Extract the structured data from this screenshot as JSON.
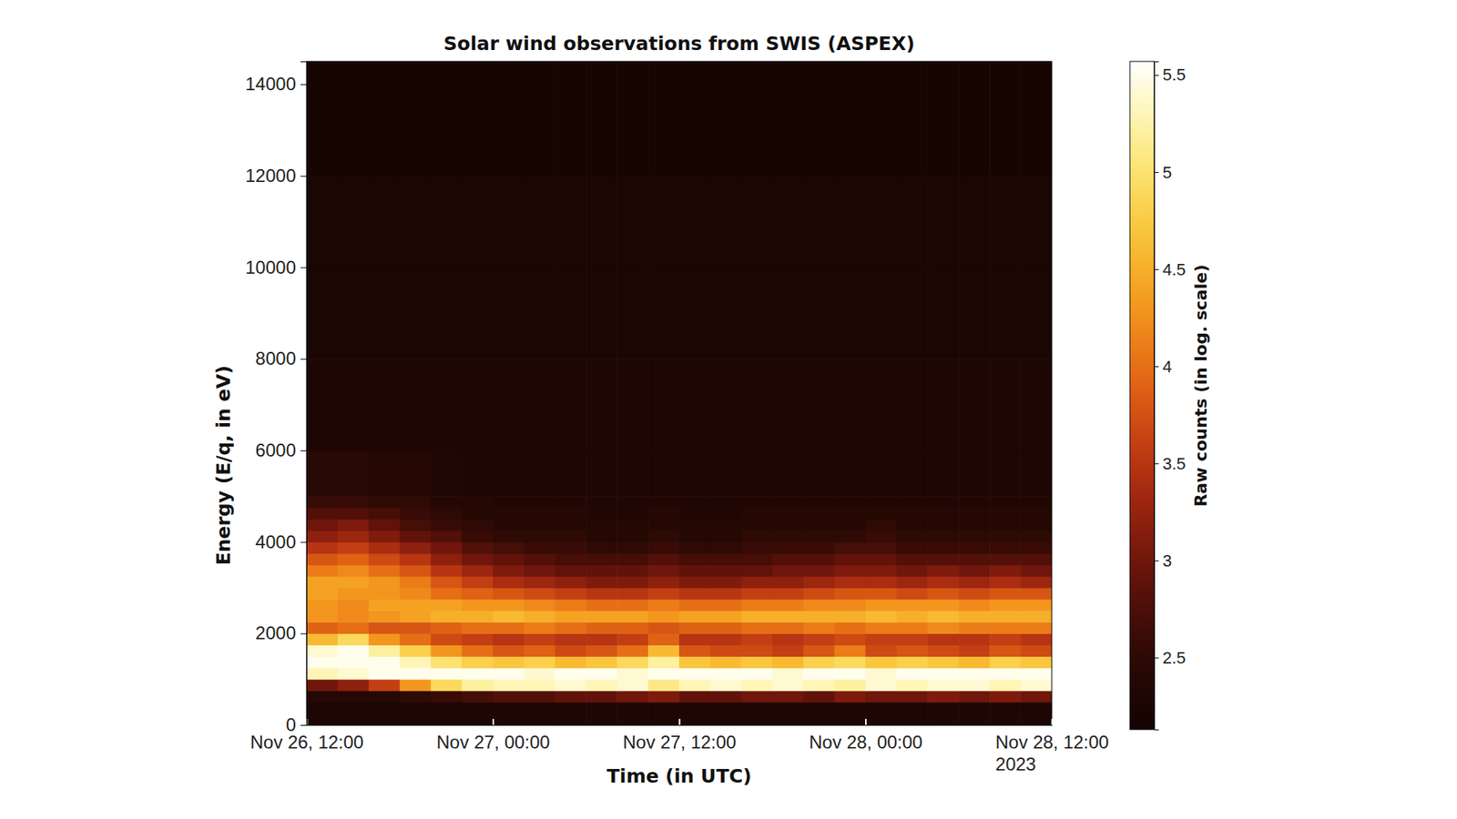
{
  "chart_data": {
    "type": "heatmap",
    "title": "Solar wind observations from SWIS (ASPEX)",
    "x_label": "Time (in UTC)",
    "y_label": "Energy (E/q, in eV)",
    "x": [
      "2023-11-26T12:00",
      "2023-11-26T14:00",
      "2023-11-26T16:00",
      "2023-11-26T18:00",
      "2023-11-26T20:00",
      "2023-11-26T22:00",
      "2023-11-27T00:00",
      "2023-11-27T02:00",
      "2023-11-27T04:00",
      "2023-11-27T06:00",
      "2023-11-27T08:00",
      "2023-11-27T10:00",
      "2023-11-27T12:00",
      "2023-11-27T14:00",
      "2023-11-27T16:00",
      "2023-11-27T18:00",
      "2023-11-27T20:00",
      "2023-11-27T22:00",
      "2023-11-28T00:00",
      "2023-11-28T02:00",
      "2023-11-28T04:00",
      "2023-11-28T06:00",
      "2023-11-28T08:00",
      "2023-11-28T10:00",
      "2023-11-28T12:00"
    ],
    "y": [
      0,
      500,
      750,
      1000,
      1250,
      1500,
      1750,
      2000,
      2250,
      2500,
      2750,
      3000,
      3250,
      3500,
      3750,
      4000,
      4250,
      4500,
      4750,
      5000,
      6000,
      8000,
      10000,
      12000,
      14500
    ],
    "cells": [
      [
        2.3,
        2.3,
        2.3,
        2.3,
        2.3,
        2.3,
        2.3,
        2.3,
        2.3,
        2.3,
        2.3,
        2.3,
        2.3,
        2.3,
        2.3,
        2.3,
        2.3,
        2.3,
        2.3,
        2.3,
        2.3,
        2.3,
        2.3,
        2.3
      ],
      [
        2.4,
        2.4,
        2.4,
        2.5,
        2.6,
        2.7,
        2.8,
        2.8,
        2.9,
        2.9,
        3.0,
        3.1,
        2.9,
        2.9,
        3.0,
        3.0,
        2.9,
        3.1,
        3.0,
        3.0,
        3.1,
        3.0,
        3.1,
        3.0
      ],
      [
        3.0,
        3.2,
        3.6,
        4.3,
        4.9,
        5.2,
        5.3,
        5.3,
        5.4,
        5.3,
        5.4,
        5.1,
        5.3,
        5.4,
        5.3,
        5.4,
        5.3,
        5.2,
        5.4,
        5.3,
        5.4,
        5.4,
        5.3,
        5.4
      ],
      [
        5.3,
        5.4,
        5.5,
        5.5,
        5.5,
        5.5,
        5.5,
        5.4,
        5.5,
        5.5,
        5.4,
        5.5,
        5.5,
        5.5,
        5.5,
        5.4,
        5.5,
        5.5,
        5.4,
        5.5,
        5.5,
        5.5,
        5.5,
        5.5
      ],
      [
        5.5,
        5.5,
        5.5,
        5.3,
        5.0,
        4.8,
        4.7,
        4.8,
        4.6,
        4.7,
        4.9,
        5.2,
        4.7,
        4.6,
        4.7,
        4.6,
        4.8,
        4.9,
        4.7,
        4.8,
        4.7,
        4.6,
        4.8,
        4.7
      ],
      [
        5.4,
        5.5,
        5.2,
        4.8,
        4.3,
        4.0,
        3.8,
        3.9,
        3.7,
        3.8,
        4.0,
        4.6,
        3.8,
        3.7,
        3.7,
        3.6,
        3.8,
        4.1,
        3.7,
        3.8,
        3.7,
        3.6,
        3.8,
        3.7
      ],
      [
        4.6,
        4.9,
        4.3,
        4.0,
        3.7,
        3.6,
        3.5,
        3.6,
        3.5,
        3.5,
        3.6,
        3.9,
        3.5,
        3.5,
        3.6,
        3.5,
        3.6,
        3.7,
        3.6,
        3.6,
        3.5,
        3.5,
        3.6,
        3.5
      ],
      [
        3.9,
        4.0,
        3.8,
        3.8,
        3.9,
        4.0,
        4.0,
        4.1,
        4.0,
        3.9,
        3.9,
        3.8,
        3.9,
        3.9,
        4.0,
        4.0,
        4.1,
        4.0,
        4.1,
        4.1,
        4.2,
        4.1,
        4.1,
        4.1
      ],
      [
        4.3,
        4.2,
        4.3,
        4.4,
        4.5,
        4.5,
        4.6,
        4.5,
        4.4,
        4.4,
        4.4,
        4.3,
        4.4,
        4.4,
        4.5,
        4.5,
        4.5,
        4.5,
        4.6,
        4.5,
        4.6,
        4.5,
        4.5,
        4.5
      ],
      [
        4.3,
        4.2,
        4.4,
        4.4,
        4.4,
        4.3,
        4.3,
        4.2,
        4.1,
        4.0,
        4.0,
        4.1,
        4.0,
        4.0,
        4.1,
        4.1,
        4.2,
        4.2,
        4.3,
        4.3,
        4.3,
        4.2,
        4.3,
        4.3
      ],
      [
        4.4,
        4.3,
        4.3,
        4.2,
        4.0,
        3.9,
        3.8,
        3.7,
        3.6,
        3.5,
        3.5,
        3.6,
        3.5,
        3.5,
        3.6,
        3.6,
        3.7,
        3.8,
        3.8,
        3.7,
        3.8,
        3.7,
        3.8,
        3.8
      ],
      [
        4.4,
        4.4,
        4.3,
        4.1,
        3.8,
        3.6,
        3.4,
        3.3,
        3.2,
        3.1,
        3.1,
        3.2,
        3.1,
        3.1,
        3.2,
        3.2,
        3.3,
        3.4,
        3.4,
        3.3,
        3.4,
        3.3,
        3.4,
        3.3
      ],
      [
        4.1,
        4.2,
        4.0,
        3.8,
        3.5,
        3.3,
        3.1,
        3.0,
        2.9,
        2.9,
        2.9,
        3.0,
        2.9,
        2.9,
        2.9,
        3.0,
        3.0,
        3.1,
        3.1,
        3.0,
        3.1,
        3.0,
        3.1,
        3.0
      ],
      [
        3.8,
        3.9,
        3.7,
        3.5,
        3.2,
        3.0,
        2.9,
        2.8,
        2.7,
        2.7,
        2.7,
        2.8,
        2.7,
        2.7,
        2.7,
        2.8,
        2.8,
        2.9,
        2.9,
        2.8,
        2.8,
        2.8,
        2.8,
        2.8
      ],
      [
        3.5,
        3.6,
        3.4,
        3.2,
        3.0,
        2.8,
        2.7,
        2.6,
        2.6,
        2.5,
        2.5,
        2.6,
        2.5,
        2.5,
        2.6,
        2.6,
        2.6,
        2.7,
        2.7,
        2.6,
        2.6,
        2.6,
        2.6,
        2.6
      ],
      [
        3.2,
        3.3,
        3.1,
        2.9,
        2.8,
        2.6,
        2.5,
        2.5,
        2.5,
        2.4,
        2.4,
        2.5,
        2.4,
        2.4,
        2.5,
        2.5,
        2.5,
        2.5,
        2.6,
        2.5,
        2.5,
        2.5,
        2.5,
        2.5
      ],
      [
        3.0,
        3.1,
        2.9,
        2.7,
        2.6,
        2.5,
        2.4,
        2.4,
        2.4,
        2.4,
        2.4,
        2.4,
        2.4,
        2.4,
        2.4,
        2.4,
        2.4,
        2.4,
        2.5,
        2.4,
        2.4,
        2.4,
        2.4,
        2.4
      ],
      [
        2.8,
        2.8,
        2.7,
        2.6,
        2.5,
        2.4,
        2.4,
        2.4,
        2.4,
        2.35,
        2.35,
        2.4,
        2.35,
        2.35,
        2.4,
        2.4,
        2.4,
        2.4,
        2.4,
        2.4,
        2.4,
        2.4,
        2.4,
        2.4
      ],
      [
        2.6,
        2.6,
        2.5,
        2.5,
        2.4,
        2.4,
        2.35,
        2.35,
        2.35,
        2.35,
        2.35,
        2.35,
        2.35,
        2.35,
        2.35,
        2.35,
        2.35,
        2.35,
        2.35,
        2.35,
        2.35,
        2.35,
        2.35,
        2.35
      ],
      [
        2.45,
        2.45,
        2.4,
        2.4,
        2.35,
        2.3,
        2.3,
        2.3,
        2.3,
        2.3,
        2.3,
        2.3,
        2.3,
        2.3,
        2.3,
        2.3,
        2.3,
        2.3,
        2.3,
        2.3,
        2.3,
        2.3,
        2.3,
        2.3
      ],
      [
        2.3,
        2.3,
        2.3,
        2.3,
        2.3,
        2.3,
        2.3,
        2.3,
        2.3,
        2.3,
        2.3,
        2.3,
        2.3,
        2.3,
        2.3,
        2.3,
        2.3,
        2.3,
        2.3,
        2.3,
        2.3,
        2.3,
        2.3,
        2.3
      ],
      [
        2.25,
        2.25,
        2.25,
        2.25,
        2.25,
        2.25,
        2.25,
        2.25,
        2.25,
        2.25,
        2.25,
        2.25,
        2.25,
        2.25,
        2.25,
        2.25,
        2.25,
        2.25,
        2.25,
        2.25,
        2.25,
        2.25,
        2.25,
        2.25
      ],
      [
        2.25,
        2.25,
        2.25,
        2.25,
        2.25,
        2.25,
        2.25,
        2.25,
        2.25,
        2.25,
        2.25,
        2.25,
        2.25,
        2.25,
        2.25,
        2.25,
        2.25,
        2.25,
        2.25,
        2.25,
        2.25,
        2.25,
        2.25,
        2.25
      ],
      [
        2.2,
        2.2,
        2.2,
        2.2,
        2.2,
        2.2,
        2.2,
        2.2,
        2.2,
        2.2,
        2.2,
        2.2,
        2.2,
        2.2,
        2.2,
        2.2,
        2.2,
        2.2,
        2.2,
        2.2,
        2.2,
        2.2,
        2.2,
        2.2
      ]
    ],
    "xlim": [
      "2023-11-26T12:00",
      "2023-11-28T12:00"
    ],
    "xticks": [
      {
        "value": "2023-11-26T12:00",
        "label": "Nov 26, 12:00"
      },
      {
        "value": "2023-11-27T00:00",
        "label": "Nov 27, 00:00"
      },
      {
        "value": "2023-11-27T12:00",
        "label": "Nov 27, 12:00"
      },
      {
        "value": "2023-11-28T00:00",
        "label": "Nov 28, 00:00"
      },
      {
        "value": "2023-11-28T12:00",
        "label": "Nov 28, 12:00\n2023"
      }
    ],
    "ylim": [
      0,
      14500
    ],
    "yticks": [
      0,
      2000,
      4000,
      6000,
      8000,
      10000,
      12000,
      14000
    ],
    "colorbar": {
      "label": "Raw counts (in log. scale)",
      "range": [
        2.13,
        5.57
      ],
      "ticks": [
        2.5,
        3,
        3.5,
        4,
        4.5,
        5,
        5.5
      ]
    }
  }
}
